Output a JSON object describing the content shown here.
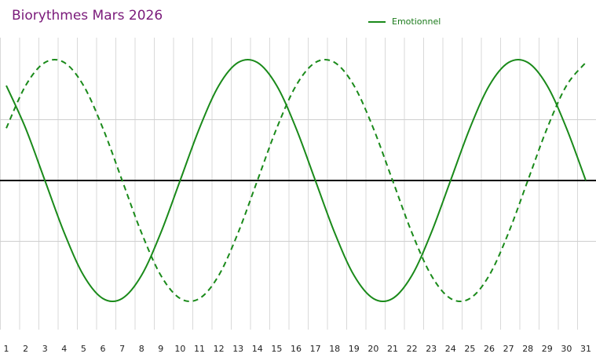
{
  "title": "Biorythmes Mars 2026",
  "legend": [
    {
      "label": "Emotionnel",
      "color": "#1a8a1a",
      "dash": "solid"
    }
  ],
  "colors": {
    "title": "#7a1a7a",
    "series": "#1a8a1a",
    "axis": "#000000",
    "grid": "#d9d9d9"
  },
  "chart_data": {
    "type": "line",
    "title": "Biorythmes Mars 2026",
    "x": [
      1,
      2,
      3,
      4,
      5,
      6,
      7,
      8,
      9,
      10,
      11,
      12,
      13,
      14,
      15,
      16,
      17,
      18,
      19,
      20,
      21,
      22,
      23,
      24,
      25,
      26,
      27,
      28,
      29,
      30,
      31
    ],
    "xticks": [
      "1",
      "2",
      "3",
      "4",
      "5",
      "6",
      "7",
      "8",
      "9",
      "10",
      "11",
      "12",
      "13",
      "14",
      "15",
      "16",
      "17",
      "18",
      "19",
      "20",
      "21",
      "22",
      "23",
      "24",
      "25",
      "26",
      "27",
      "28",
      "29",
      "30",
      "31"
    ],
    "ylim": [
      -100,
      100
    ],
    "grid": true,
    "legend_position": "top-center",
    "series": [
      {
        "name": "Emotionnel",
        "style": "solid",
        "values": [
          78,
          43,
          0,
          -43,
          -78,
          -97,
          -97,
          -78,
          -43,
          0,
          43,
          78,
          97,
          97,
          78,
          43,
          0,
          -43,
          -78,
          -97,
          -97,
          -78,
          -43,
          0,
          43,
          78,
          97,
          97,
          78,
          43,
          0
        ]
      },
      {
        "style": "dashed",
        "values": [
          43,
          78,
          97,
          97,
          78,
          43,
          0,
          -43,
          -78,
          -97,
          -97,
          -78,
          -43,
          0,
          43,
          78,
          97,
          97,
          78,
          43,
          0,
          -43,
          -78,
          -97,
          -97,
          -78,
          -43,
          0,
          43,
          78,
          97
        ]
      }
    ]
  }
}
